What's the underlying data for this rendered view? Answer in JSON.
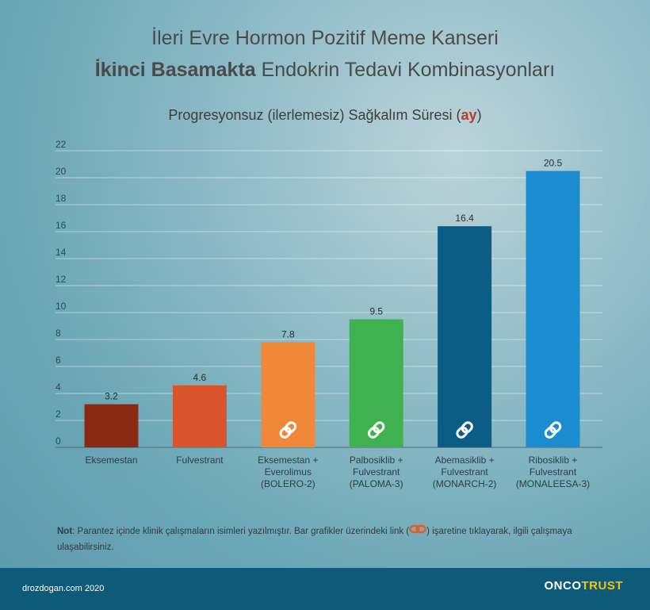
{
  "header": {
    "title_line1": "İleri Evre Hormon Pozitif Meme Kanseri",
    "title_line2_bold": "İkinci Basamakta",
    "title_line2_rest": " Endokrin Tedavi Kombinasyonları",
    "subtitle_main": "Progresyonsuz (ilerlemesiz) Sağkalım Süresi (",
    "subtitle_unit": "ay",
    "subtitle_end": ")"
  },
  "chart_data": {
    "type": "bar",
    "title": "Progresyonsuz (ilerlemesiz) Sağkalım Süresi (ay)",
    "xlabel": "",
    "ylabel": "",
    "ylim": [
      0,
      22
    ],
    "yticks": [
      0,
      2,
      4,
      6,
      8,
      10,
      12,
      14,
      16,
      18,
      20,
      22
    ],
    "grid": true,
    "categories": [
      [
        "Eksemestan"
      ],
      [
        "Fulvestrant"
      ],
      [
        "Eksemestan +",
        "Everolimus",
        "(BOLERO-2)"
      ],
      [
        "Palbosiklib +",
        "Fulvestrant",
        "(PALOMA-3)"
      ],
      [
        "Abemasiklib +",
        "Fulvestrant",
        "(MONARCH-2)"
      ],
      [
        "Ribosiklib +",
        "Fulvestrant",
        "(MONALEESA-3)"
      ]
    ],
    "values": [
      3.2,
      4.6,
      7.8,
      9.5,
      16.4,
      20.5
    ],
    "value_labels": [
      "3.2",
      "4.6",
      "7.8",
      "9.5",
      "16.4",
      "20.5"
    ],
    "colors": [
      "#8b2a14",
      "#d9532b",
      "#f0883a",
      "#3fb24f",
      "#0b5d86",
      "#1a8ccf"
    ],
    "has_link": [
      false,
      false,
      true,
      true,
      true,
      true
    ],
    "link_icon": "link-chain-icon"
  },
  "note": {
    "label": "Not",
    "text_before": ": Parantez içinde klinik çalışmaların isimleri yazılmıştır. Bar grafikler üzerindeki link (",
    "text_after": ") işaretine tıklayarak, ilgili çalışmaya ulaşabilirsiniz.",
    "link_icon": "link-chain-icon"
  },
  "footer": {
    "credit": "drozdogan.com 2020",
    "brand_a": "ONCO",
    "brand_b": "TRUST"
  }
}
